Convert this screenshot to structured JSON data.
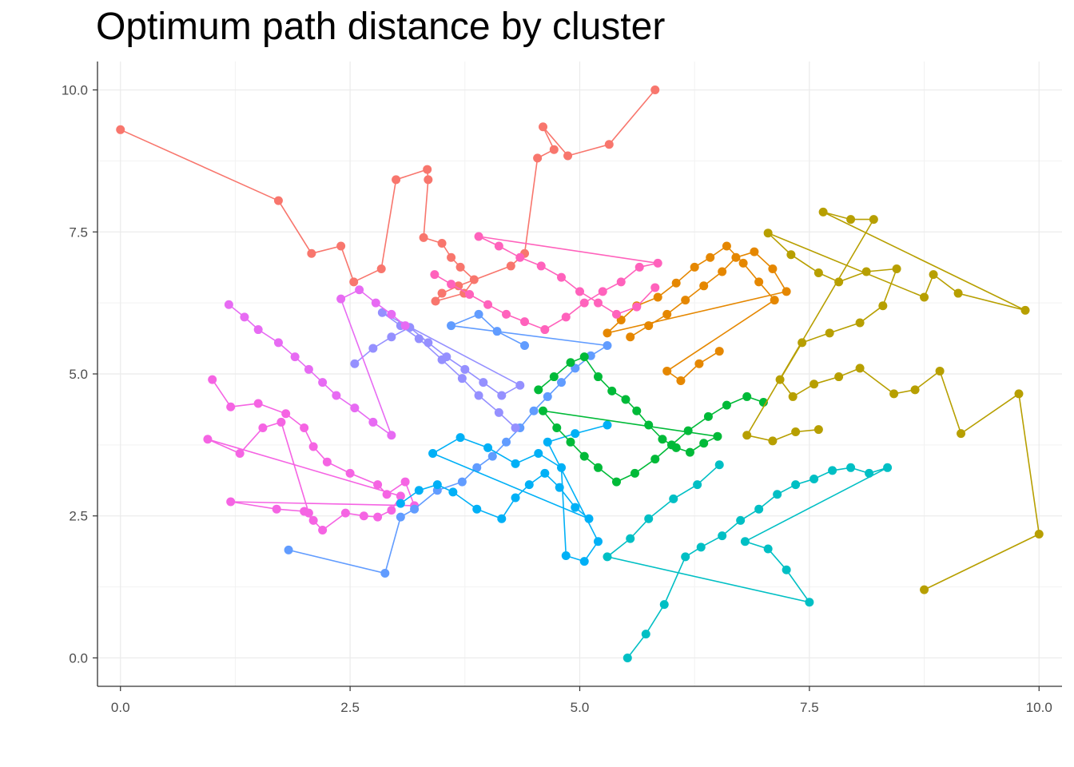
{
  "chart_data": {
    "type": "scatter",
    "title": "Optimum path distance by cluster",
    "xlabel": "",
    "ylabel": "",
    "xlim": [
      -0.25,
      10.25
    ],
    "ylim": [
      -0.5,
      10.5
    ],
    "x_ticks": [
      "0.0",
      "2.5",
      "5.0",
      "7.5",
      "10.0"
    ],
    "y_ticks": [
      "0.0",
      "2.5",
      "5.0",
      "7.5",
      "10.0"
    ],
    "grid": true,
    "legend": "none",
    "series": [
      {
        "color": "#F8766D",
        "x": [
          0.0,
          1.72,
          2.08,
          2.4,
          2.54,
          2.84,
          3.0,
          3.34,
          3.35,
          3.3,
          3.5,
          3.6,
          3.7,
          3.85,
          3.74,
          3.43,
          3.5,
          3.68,
          4.25,
          4.4,
          4.54,
          4.72,
          4.6,
          4.87,
          5.32,
          5.82
        ],
        "y": [
          9.3,
          8.05,
          7.12,
          7.25,
          6.62,
          6.85,
          8.42,
          8.6,
          8.42,
          7.4,
          7.3,
          7.05,
          6.88,
          6.66,
          6.42,
          6.28,
          6.42,
          6.55,
          6.9,
          7.12,
          8.8,
          8.95,
          9.35,
          8.84,
          9.04,
          10.0
        ]
      },
      {
        "color": "#F564E3",
        "x": [
          1.0,
          1.2,
          1.5,
          1.8,
          2.0,
          2.1,
          2.25,
          2.5,
          2.8,
          2.9,
          3.1,
          3.2,
          1.2,
          1.7,
          2.0,
          2.1,
          2.2,
          2.45,
          2.65,
          2.8,
          2.95,
          3.05,
          0.95,
          1.3,
          1.55,
          1.75,
          2.05
        ],
        "y": [
          4.9,
          4.42,
          4.48,
          4.3,
          4.05,
          3.72,
          3.45,
          3.25,
          3.05,
          2.88,
          3.1,
          2.68,
          2.75,
          2.62,
          2.58,
          2.42,
          2.25,
          2.55,
          2.5,
          2.48,
          2.6,
          2.85,
          3.85,
          3.6,
          4.05,
          4.15,
          2.55
        ]
      },
      {
        "color": "#619CFF",
        "x": [
          1.83,
          2.88,
          3.05,
          3.2,
          3.45,
          3.72,
          3.88,
          4.05,
          4.2,
          4.35,
          4.5,
          4.65,
          4.8,
          4.95,
          5.12,
          5.3,
          3.6,
          3.9,
          4.1,
          4.4
        ],
        "y": [
          1.9,
          1.49,
          2.48,
          2.62,
          2.95,
          3.1,
          3.35,
          3.55,
          3.8,
          4.05,
          4.35,
          4.6,
          4.85,
          5.1,
          5.32,
          5.5,
          5.85,
          6.05,
          5.75,
          5.5
        ]
      },
      {
        "color": "#00B0F6",
        "x": [
          3.05,
          3.25,
          3.45,
          3.62,
          3.88,
          4.15,
          4.3,
          4.45,
          4.62,
          4.78,
          4.95,
          5.1,
          3.4,
          3.7,
          4.0,
          4.3,
          4.55,
          4.8,
          4.85,
          5.05,
          5.2,
          4.65,
          4.95,
          5.3
        ],
        "y": [
          2.72,
          2.95,
          3.05,
          2.92,
          2.62,
          2.45,
          2.82,
          3.05,
          3.25,
          3.0,
          2.65,
          2.45,
          3.6,
          3.88,
          3.7,
          3.42,
          3.6,
          3.35,
          1.8,
          1.7,
          2.05,
          3.8,
          3.95,
          4.1
        ]
      },
      {
        "color": "#00BFC4",
        "x": [
          5.52,
          5.72,
          5.92,
          6.15,
          6.32,
          6.55,
          6.75,
          6.95,
          7.15,
          7.35,
          7.55,
          7.75,
          7.95,
          8.15,
          8.35,
          6.8,
          7.05,
          7.25,
          7.5,
          5.3,
          5.55,
          5.75,
          6.02,
          6.28,
          6.52
        ],
        "y": [
          0.0,
          0.42,
          0.94,
          1.78,
          1.95,
          2.15,
          2.42,
          2.62,
          2.88,
          3.05,
          3.15,
          3.3,
          3.35,
          3.25,
          3.35,
          2.05,
          1.92,
          1.55,
          0.98,
          1.78,
          2.1,
          2.45,
          2.8,
          3.05,
          3.4
        ]
      },
      {
        "color": "#00BA38",
        "x": [
          4.55,
          4.72,
          4.9,
          5.05,
          5.2,
          5.35,
          5.5,
          5.62,
          5.75,
          5.9,
          6.05,
          6.2,
          6.35,
          6.5,
          4.6,
          4.75,
          4.9,
          5.05,
          5.2,
          5.4,
          5.6,
          5.82,
          6.0,
          6.18,
          6.4,
          6.6,
          6.82,
          7.0
        ],
        "y": [
          4.72,
          4.95,
          5.2,
          5.3,
          4.95,
          4.7,
          4.55,
          4.35,
          4.1,
          3.85,
          3.7,
          3.62,
          3.78,
          3.9,
          4.35,
          4.05,
          3.8,
          3.55,
          3.35,
          3.1,
          3.25,
          3.5,
          3.75,
          4.0,
          4.25,
          4.45,
          4.6,
          4.5
        ]
      },
      {
        "color": "#B79F00",
        "x": [
          8.75,
          10.0,
          9.78,
          9.15,
          8.92,
          8.65,
          8.42,
          8.05,
          7.82,
          7.55,
          7.32,
          7.18,
          7.42,
          7.72,
          8.05,
          8.3,
          8.45,
          8.12,
          7.82,
          7.6,
          7.3,
          7.05,
          8.75,
          8.85,
          9.12,
          9.85,
          7.65,
          7.95,
          8.2,
          6.82,
          7.1,
          7.35,
          7.6
        ],
        "y": [
          1.2,
          2.18,
          4.65,
          3.95,
          5.05,
          4.72,
          4.65,
          5.1,
          4.95,
          4.82,
          4.6,
          4.9,
          5.55,
          5.72,
          5.9,
          6.2,
          6.85,
          6.8,
          6.62,
          6.78,
          7.1,
          7.48,
          6.35,
          6.75,
          6.42,
          6.12,
          7.85,
          7.72,
          7.72,
          3.92,
          3.82,
          3.98,
          4.02
        ]
      },
      {
        "color": "#E58700",
        "x": [
          5.55,
          5.75,
          5.95,
          6.15,
          6.35,
          6.55,
          6.7,
          6.9,
          7.1,
          7.25,
          5.3,
          5.45,
          5.62,
          5.85,
          6.05,
          6.25,
          6.42,
          6.6,
          6.78,
          6.95,
          7.12,
          5.95,
          6.1,
          6.3,
          6.52
        ],
        "y": [
          5.65,
          5.85,
          6.05,
          6.3,
          6.55,
          6.8,
          7.05,
          7.15,
          6.85,
          6.45,
          5.72,
          5.95,
          6.2,
          6.35,
          6.6,
          6.88,
          7.05,
          7.25,
          6.95,
          6.62,
          6.3,
          5.05,
          4.88,
          5.18,
          5.4
        ]
      },
      {
        "color": "#9590FF",
        "x": [
          2.55,
          2.75,
          2.95,
          3.15,
          3.35,
          3.55,
          3.75,
          3.95,
          4.15,
          4.35,
          2.85,
          3.05,
          3.25,
          3.5,
          3.72,
          3.9,
          4.12,
          4.3
        ],
        "y": [
          5.18,
          5.45,
          5.65,
          5.82,
          5.55,
          5.3,
          5.08,
          4.85,
          4.62,
          4.8,
          6.08,
          5.85,
          5.62,
          5.25,
          4.92,
          4.62,
          4.32,
          4.05
        ]
      },
      {
        "color": "#E76BF3",
        "x": [
          1.18,
          1.35,
          1.5,
          1.72,
          1.9,
          2.05,
          2.2,
          2.35,
          2.55,
          2.75,
          2.95,
          2.4,
          2.6,
          2.78,
          2.95,
          3.1
        ],
        "y": [
          6.22,
          6.0,
          5.78,
          5.55,
          5.3,
          5.08,
          4.85,
          4.62,
          4.4,
          4.15,
          3.92,
          6.32,
          6.48,
          6.25,
          6.05,
          5.85
        ]
      },
      {
        "color": "#FF62BC",
        "x": [
          3.42,
          3.6,
          3.8,
          4.0,
          4.2,
          4.4,
          4.62,
          4.85,
          5.05,
          5.25,
          5.45,
          5.65,
          5.85,
          3.9,
          4.12,
          4.35,
          4.58,
          4.8,
          5.0,
          5.2,
          5.4,
          5.62,
          5.82
        ],
        "y": [
          6.75,
          6.58,
          6.4,
          6.22,
          6.05,
          5.92,
          5.78,
          6.0,
          6.25,
          6.45,
          6.62,
          6.88,
          6.95,
          7.42,
          7.25,
          7.05,
          6.9,
          6.7,
          6.45,
          6.25,
          6.05,
          6.18,
          6.52
        ]
      }
    ]
  }
}
